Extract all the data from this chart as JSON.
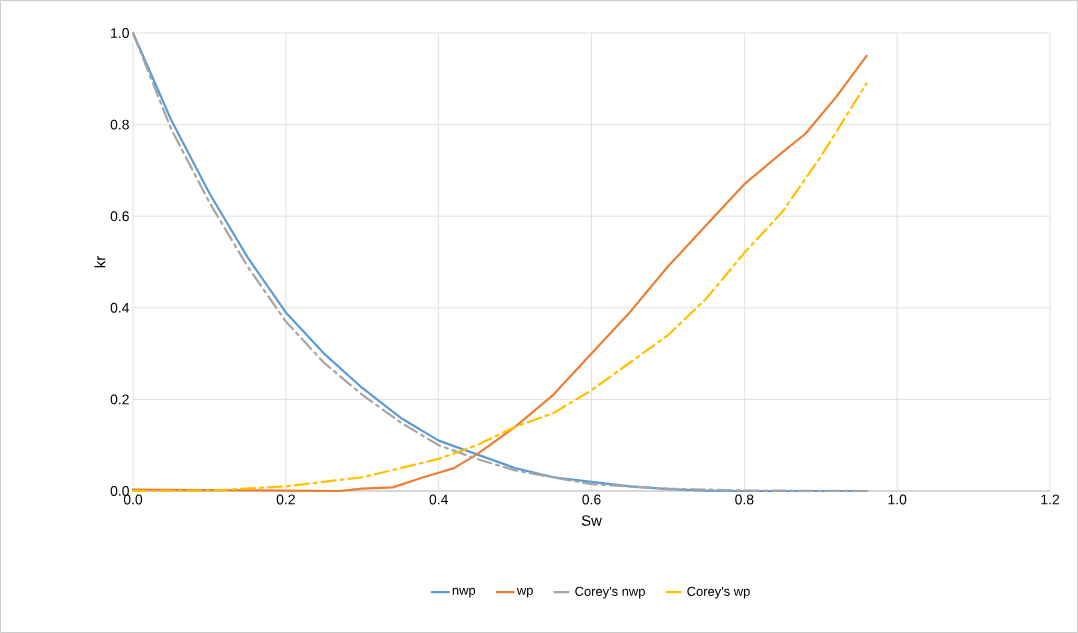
{
  "chart_data": {
    "type": "line",
    "xlabel": "Sw",
    "ylabel": "kr",
    "xlim": [
      0,
      1.2
    ],
    "ylim": [
      0,
      1.0
    ],
    "xticks": [
      {
        "value": 0,
        "label": "0.0"
      },
      {
        "value": 0.2,
        "label": "0.2"
      },
      {
        "value": 0.4,
        "label": "0.4"
      },
      {
        "value": 0.6,
        "label": "0.6"
      },
      {
        "value": 0.8,
        "label": "0.8"
      },
      {
        "value": 1.0,
        "label": "1.0"
      },
      {
        "value": 1.2,
        "label": "1.2"
      }
    ],
    "yticks": [
      {
        "value": 0,
        "label": "0.0"
      },
      {
        "value": 0.2,
        "label": "0.2"
      },
      {
        "value": 0.4,
        "label": "0.4"
      },
      {
        "value": 0.6,
        "label": "0.6"
      },
      {
        "value": 0.8,
        "label": "0.8"
      },
      {
        "value": 1.0,
        "label": "1.0"
      }
    ],
    "grid": true,
    "legend": "bottom",
    "marker": "none",
    "series": [
      {
        "name": "nwp",
        "color": "#5b9bd5",
        "line_style": "solid",
        "x": [
          0,
          0.05,
          0.1,
          0.15,
          0.2,
          0.25,
          0.3,
          0.35,
          0.4,
          0.45,
          0.5,
          0.55,
          0.6,
          0.65,
          0.7,
          0.75,
          0.8,
          0.96
        ],
        "values": [
          1.0,
          0.81,
          0.65,
          0.51,
          0.39,
          0.3,
          0.225,
          0.16,
          0.11,
          0.08,
          0.05,
          0.03,
          0.02,
          0.01,
          0.004,
          0.001,
          0,
          0
        ]
      },
      {
        "name": "wp",
        "color": "#ed7d31",
        "line_style": "solid",
        "x": [
          0,
          0.1,
          0.2,
          0.27,
          0.3,
          0.34,
          0.38,
          0.4,
          0.42,
          0.45,
          0.5,
          0.55,
          0.6,
          0.65,
          0.7,
          0.75,
          0.8,
          0.85,
          0.88,
          0.92,
          0.96
        ],
        "values": [
          0.003,
          0.002,
          0.001,
          0,
          0.005,
          0.008,
          0.03,
          0.04,
          0.05,
          0.08,
          0.14,
          0.21,
          0.3,
          0.39,
          0.49,
          0.58,
          0.67,
          0.74,
          0.78,
          0.86,
          0.95
        ]
      },
      {
        "name": "Corey's nwp",
        "color": "#a5a5a5",
        "line_style": "dashdot",
        "x": [
          0,
          0.05,
          0.1,
          0.15,
          0.2,
          0.25,
          0.3,
          0.35,
          0.4,
          0.45,
          0.5,
          0.55,
          0.6,
          0.7,
          0.8,
          0.96
        ],
        "values": [
          1.0,
          0.79,
          0.63,
          0.49,
          0.37,
          0.28,
          0.21,
          0.15,
          0.1,
          0.07,
          0.045,
          0.03,
          0.015,
          0.005,
          0.001,
          0
        ]
      },
      {
        "name": "Corey's wp",
        "color": "#ffc000",
        "line_style": "dashdot",
        "x": [
          0,
          0.1,
          0.2,
          0.3,
          0.4,
          0.45,
          0.5,
          0.55,
          0.6,
          0.65,
          0.7,
          0.75,
          0.8,
          0.85,
          0.9,
          0.96
        ],
        "values": [
          0,
          0.001,
          0.01,
          0.03,
          0.07,
          0.1,
          0.14,
          0.17,
          0.22,
          0.28,
          0.34,
          0.42,
          0.52,
          0.61,
          0.73,
          0.89
        ]
      }
    ]
  }
}
